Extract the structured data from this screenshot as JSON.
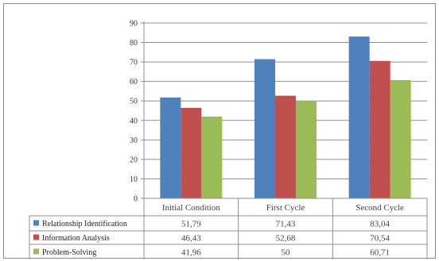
{
  "chart_data": {
    "type": "bar",
    "categories": [
      "Initial Condition",
      "First Cycle",
      "Second Cycle"
    ],
    "series": [
      {
        "name": "Relationship Identification",
        "color": "#4f81bd",
        "values": [
          51.79,
          71.43,
          83.04
        ],
        "labels": [
          "51,79",
          "71,43",
          "83,04"
        ]
      },
      {
        "name": "Information Analysis",
        "color": "#c0504d",
        "values": [
          46.43,
          52.68,
          70.54
        ],
        "labels": [
          "46,43",
          "52,68",
          "70,54"
        ]
      },
      {
        "name": "Problem-Solving",
        "color": "#9bbb59",
        "values": [
          41.96,
          50,
          60.71
        ],
        "labels": [
          "41,96",
          "50",
          "60,71"
        ]
      }
    ],
    "yticks": [
      "0",
      "10",
      "20",
      "30",
      "40",
      "50",
      "60",
      "70",
      "80",
      "90"
    ],
    "ylim": [
      0,
      90
    ],
    "grid": true,
    "legend": "data-table",
    "title": "",
    "xlabel": "",
    "ylabel": ""
  }
}
